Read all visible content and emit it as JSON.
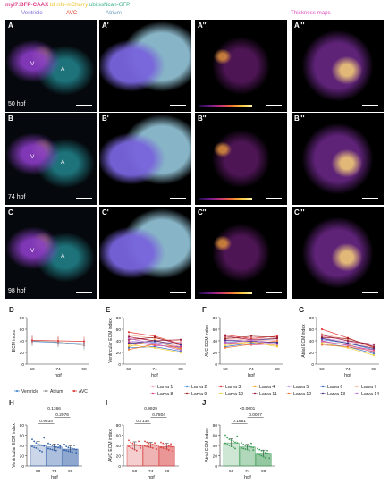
{
  "header": {
    "line1a": "myl7:BFP-CAAX",
    "line1b": "tdl:nfs-mCherry",
    "line1c": "ubi:ssNcan-GFP",
    "ventricle": "Ventricle",
    "avc": "AVC",
    "atrium": "Atrium",
    "thickness": "Thickness maps"
  },
  "rows": [
    {
      "labels": [
        "A",
        "A'",
        "A''",
        "A'''"
      ],
      "stage": "50 hpf"
    },
    {
      "labels": [
        "B",
        "B'",
        "B''",
        "B'''"
      ],
      "stage": "74 hpf"
    },
    {
      "labels": [
        "C",
        "C'",
        "C''",
        "C'''"
      ],
      "stage": "98 hpf"
    }
  ],
  "tissue": {
    "v": "V",
    "a": "A"
  },
  "colors": {
    "ventricle": "#4a8cd0",
    "atrium": "#a0a0a0",
    "avc": "#e0403a",
    "ventricleBar": "#2f5fa8",
    "avcBar": "#d84040",
    "atriumBar": "#3a9a52"
  },
  "chart_data": [
    {
      "panel": "D",
      "type": "line",
      "x": [
        50,
        74,
        98
      ],
      "xlabel": "hpf",
      "ylabel": "ECM index",
      "ylim": [
        0,
        80
      ],
      "yticks": [
        0,
        20,
        40,
        60,
        80
      ],
      "series": [
        {
          "name": "Ventricle",
          "values": [
            39,
            37,
            35
          ]
        },
        {
          "name": "Atrium",
          "values": [
            40,
            38,
            32
          ]
        },
        {
          "name": "AVC",
          "values": [
            41,
            40,
            39
          ]
        }
      ]
    },
    {
      "panel": "E",
      "type": "line",
      "x": [
        50,
        74,
        98
      ],
      "xlabel": "hpf",
      "ylabel": "Ventricular ECM index",
      "ylim": [
        0,
        80
      ],
      "yticks": [
        0,
        20,
        40,
        60,
        80
      ],
      "series": [
        {
          "name": "Larva 1",
          "values": [
            45,
            40,
            30
          ]
        },
        {
          "name": "Larva 2",
          "values": [
            35,
            38,
            28
          ]
        },
        {
          "name": "Larva 3",
          "values": [
            55,
            48,
            35
          ]
        },
        {
          "name": "Larva 4",
          "values": [
            30,
            42,
            25
          ]
        },
        {
          "name": "Larva 5",
          "values": [
            40,
            36,
            38
          ]
        },
        {
          "name": "Larva 6",
          "values": [
            28,
            30,
            22
          ]
        },
        {
          "name": "Larva 7",
          "values": [
            50,
            44,
            40
          ]
        },
        {
          "name": "Larva 8",
          "values": [
            38,
            32,
            30
          ]
        },
        {
          "name": "Larva 9",
          "values": [
            42,
            46,
            34
          ]
        },
        {
          "name": "Larva 10",
          "values": [
            33,
            28,
            20
          ]
        },
        {
          "name": "Larva 11",
          "values": [
            47,
            40,
            42
          ]
        },
        {
          "name": "Larva 12",
          "values": [
            25,
            34,
            27
          ]
        },
        {
          "name": "Larva 13",
          "values": [
            36,
            40,
            33
          ]
        },
        {
          "name": "Larva 14",
          "values": [
            44,
            35,
            24
          ]
        }
      ]
    },
    {
      "panel": "F",
      "type": "line",
      "x": [
        50,
        74,
        98
      ],
      "xlabel": "hpf",
      "ylabel": "AVC ECM index",
      "ylim": [
        0,
        80
      ],
      "yticks": [
        0,
        20,
        40,
        60,
        80
      ],
      "series": [
        {
          "name": "Larva 1",
          "values": [
            42,
            45,
            40
          ]
        },
        {
          "name": "Larva 2",
          "values": [
            38,
            40,
            44
          ]
        },
        {
          "name": "Larva 3",
          "values": [
            50,
            44,
            48
          ]
        },
        {
          "name": "Larva 4",
          "values": [
            35,
            38,
            32
          ]
        },
        {
          "name": "Larva 5",
          "values": [
            40,
            42,
            36
          ]
        },
        {
          "name": "Larva 6",
          "values": [
            30,
            36,
            38
          ]
        },
        {
          "name": "Larva 7",
          "values": [
            46,
            40,
            42
          ]
        },
        {
          "name": "Larva 8",
          "values": [
            37,
            33,
            35
          ]
        },
        {
          "name": "Larva 9",
          "values": [
            44,
            48,
            46
          ]
        },
        {
          "name": "Larva 10",
          "values": [
            32,
            38,
            30
          ]
        },
        {
          "name": "Larva 11",
          "values": [
            48,
            42,
            44
          ]
        },
        {
          "name": "Larva 12",
          "values": [
            28,
            34,
            40
          ]
        },
        {
          "name": "Larva 13",
          "values": [
            41,
            39,
            37
          ]
        },
        {
          "name": "Larva 14",
          "values": [
            36,
            41,
            34
          ]
        }
      ]
    },
    {
      "panel": "G",
      "type": "line",
      "x": [
        50,
        74,
        98
      ],
      "xlabel": "hpf",
      "ylabel": "Atrial ECM index",
      "ylim": [
        0,
        80
      ],
      "yticks": [
        0,
        20,
        40,
        60,
        80
      ],
      "series": [
        {
          "name": "Larva 1",
          "values": [
            48,
            40,
            30
          ]
        },
        {
          "name": "Larva 2",
          "values": [
            42,
            36,
            25
          ]
        },
        {
          "name": "Larva 3",
          "values": [
            60,
            45,
            28
          ]
        },
        {
          "name": "Larva 4",
          "values": [
            38,
            34,
            20
          ]
        },
        {
          "name": "Larva 5",
          "values": [
            45,
            38,
            32
          ]
        },
        {
          "name": "Larva 6",
          "values": [
            35,
            30,
            18
          ]
        },
        {
          "name": "Larva 7",
          "values": [
            52,
            42,
            26
          ]
        },
        {
          "name": "Larva 8",
          "values": [
            40,
            32,
            24
          ]
        },
        {
          "name": "Larva 9",
          "values": [
            46,
            44,
            30
          ]
        },
        {
          "name": "Larva 10",
          "values": [
            36,
            28,
            15
          ]
        },
        {
          "name": "Larva 11",
          "values": [
            50,
            40,
            34
          ]
        },
        {
          "name": "Larva 12",
          "values": [
            33,
            30,
            22
          ]
        },
        {
          "name": "Larva 13",
          "values": [
            44,
            36,
            27
          ]
        },
        {
          "name": "Larva 14",
          "values": [
            39,
            33,
            21
          ]
        }
      ]
    },
    {
      "panel": "H",
      "type": "bar",
      "categories": [
        "50",
        "74",
        "98"
      ],
      "values": [
        40,
        37,
        33
      ],
      "errors": [
        8,
        6,
        6
      ],
      "points": [
        [
          52,
          48,
          45,
          43,
          41,
          40,
          39,
          38,
          36,
          35,
          33,
          30,
          28,
          55
        ],
        [
          44,
          42,
          40,
          38,
          37,
          36,
          35,
          34,
          33,
          32,
          31,
          30,
          42,
          39
        ],
        [
          42,
          38,
          36,
          35,
          34,
          33,
          32,
          31,
          30,
          29,
          28,
          27,
          40,
          26
        ]
      ],
      "xlabel": "hpf",
      "ylabel": "Ventricular ECM index",
      "ylim": [
        0,
        80
      ],
      "yticks": [
        0,
        20,
        40,
        60,
        80
      ],
      "pvalues": [
        {
          "text": "0.1366",
          "pair": [
            0,
            2
          ]
        },
        {
          "text": "0.2076",
          "pair": [
            1,
            2
          ]
        },
        {
          "text": "0.9534",
          "pair": [
            0,
            1
          ]
        }
      ]
    },
    {
      "panel": "I",
      "type": "bar",
      "categories": [
        "50",
        "74",
        "98"
      ],
      "values": [
        40,
        41,
        38
      ],
      "errors": [
        7,
        5,
        6
      ],
      "points": [
        [
          50,
          46,
          44,
          42,
          41,
          40,
          39,
          38,
          36,
          34,
          32,
          30,
          48,
          35
        ],
        [
          48,
          46,
          44,
          43,
          42,
          41,
          40,
          39,
          38,
          37,
          36,
          35,
          45,
          33
        ],
        [
          46,
          44,
          42,
          40,
          39,
          38,
          37,
          36,
          35,
          34,
          33,
          31,
          43,
          29
        ]
      ],
      "xlabel": "hpf",
      "ylabel": "AVC ECM index",
      "ylim": [
        0,
        80
      ],
      "yticks": [
        0,
        20,
        40,
        60,
        80
      ],
      "pvalues": [
        {
          "text": "0.9929",
          "pair": [
            0,
            2
          ]
        },
        {
          "text": "0.7804",
          "pair": [
            1,
            2
          ]
        },
        {
          "text": "0.7135",
          "pair": [
            0,
            1
          ]
        }
      ]
    },
    {
      "panel": "J",
      "type": "bar",
      "categories": [
        "50",
        "74",
        "98"
      ],
      "values": [
        45,
        37,
        25
      ],
      "errors": [
        8,
        5,
        6
      ],
      "points": [
        [
          60,
          55,
          52,
          50,
          48,
          46,
          45,
          44,
          42,
          40,
          38,
          36,
          34,
          58
        ],
        [
          45,
          42,
          40,
          39,
          38,
          37,
          36,
          35,
          34,
          33,
          32,
          30,
          44,
          31
        ],
        [
          34,
          32,
          30,
          28,
          26,
          25,
          24,
          23,
          22,
          20,
          18,
          16,
          30,
          15
        ]
      ],
      "xlabel": "hpf",
      "ylabel": "Atrial ECM index",
      "ylim": [
        0,
        80
      ],
      "yticks": [
        0,
        20,
        40,
        60,
        80
      ],
      "pvalues": [
        {
          "text": "<0.0001",
          "pair": [
            0,
            2
          ]
        },
        {
          "text": "0.0007",
          "pair": [
            1,
            2
          ]
        },
        {
          "text": "0.1651",
          "pair": [
            0,
            1
          ]
        }
      ]
    }
  ],
  "larva_colors": [
    "#f7a8b8",
    "#4a90d9",
    "#e33a3a",
    "#f0a030",
    "#c8a0e0",
    "#3a70c0",
    "#f5b8a0",
    "#d83a8a",
    "#9a2020",
    "#f0d040",
    "#9a1a40",
    "#f07a3a",
    "#4a2a80",
    "#c070d0"
  ]
}
